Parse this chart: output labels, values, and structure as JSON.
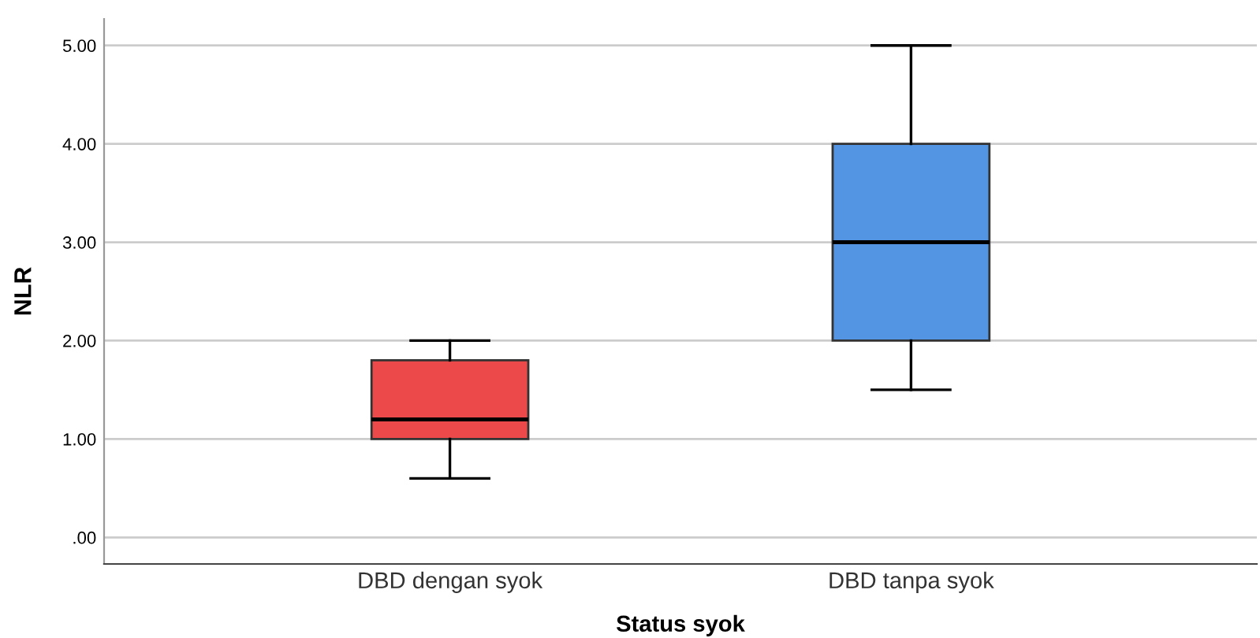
{
  "chart_data": {
    "type": "box",
    "xlabel": "Status syok",
    "ylabel": "NLR",
    "categories": [
      "DBD dengan syok",
      "DBD tanpa syok"
    ],
    "colors": [
      "#ec4a4a",
      "#5495e3"
    ],
    "boxes": [
      {
        "low": 0.6,
        "q1": 1.0,
        "median": 1.2,
        "q3": 1.8,
        "high": 2.0
      },
      {
        "low": 1.5,
        "q1": 2.0,
        "median": 3.0,
        "q3": 4.0,
        "high": 5.0
      }
    ],
    "ylim": [
      -0.27,
      5.27
    ],
    "yticks": [
      {
        "value": 0,
        "label": ".00"
      },
      {
        "value": 1,
        "label": "1.00"
      },
      {
        "value": 2,
        "label": "2.00"
      },
      {
        "value": 3,
        "label": "3.00"
      },
      {
        "value": 4,
        "label": "4.00"
      },
      {
        "value": 5,
        "label": "5.00"
      }
    ],
    "grid": "y"
  }
}
